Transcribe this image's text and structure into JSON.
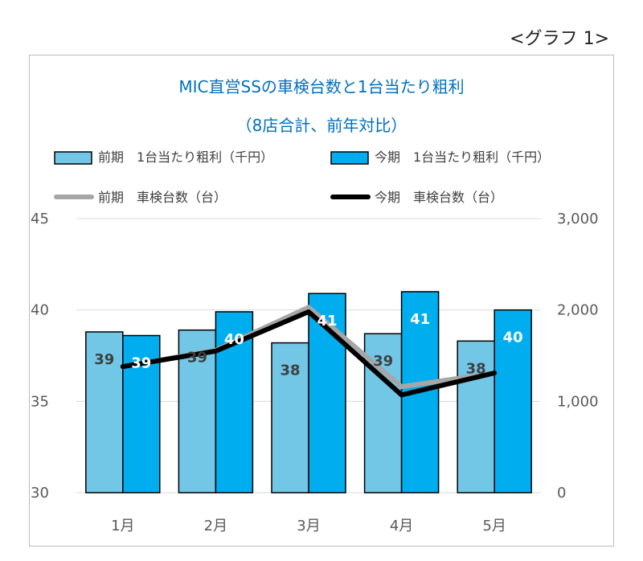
{
  "caption": "<グラフ 1>",
  "chart_data": {
    "type": "bar",
    "title": "MIC直営SSの車検台数と1台当たり粗利",
    "subtitle": "（8店合計、前年対比）",
    "categories": [
      "1月",
      "2月",
      "3月",
      "4月",
      "5月"
    ],
    "left_axis": {
      "ylim": [
        30,
        45
      ],
      "ticks": [
        "30",
        "35",
        "40",
        "45"
      ]
    },
    "right_axis": {
      "ylim": [
        0,
        3000
      ],
      "ticks": [
        "0",
        "1,000",
        "2,000",
        "3,000"
      ]
    },
    "grid": true,
    "legend_position": "top",
    "bar_series": [
      {
        "name": "前期　1台当たり粗利（千円）",
        "axis": "left",
        "color": "#72c6e6",
        "values": [
          38.8,
          38.9,
          38.2,
          38.7,
          38.3
        ],
        "labels": [
          "39",
          "39",
          "38",
          "39",
          "38"
        ],
        "label_color": "#404040"
      },
      {
        "name": "今期　1台当たり粗利（千円）",
        "axis": "left",
        "color": "#00aeef",
        "values": [
          38.6,
          39.9,
          40.9,
          41.0,
          40.0
        ],
        "labels": [
          "39",
          "40",
          "41",
          "41",
          "40"
        ],
        "label_color": "#ffffff"
      }
    ],
    "line_series": [
      {
        "name": "前期　車検台数（台）",
        "axis": "right",
        "color": "#a6a6a6",
        "values": [
          1380,
          1560,
          2030,
          1160,
          1310
        ]
      },
      {
        "name": "今期　車検台数（台）",
        "axis": "right",
        "color": "#000000",
        "values": [
          1380,
          1550,
          1980,
          1070,
          1310
        ]
      }
    ]
  }
}
